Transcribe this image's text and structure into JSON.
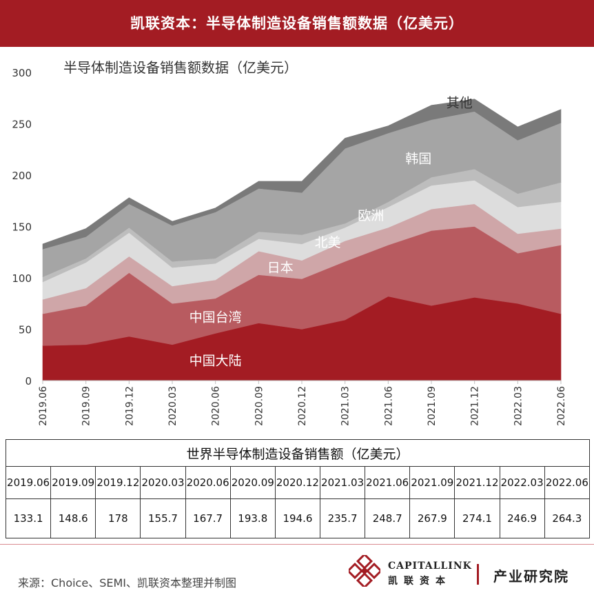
{
  "header": {
    "title": "凯联资本：半导体制造设备销售额数据（亿美元）"
  },
  "chart_data": {
    "type": "area",
    "stacked": true,
    "title": "半导体制造设备销售额数据（亿美元）",
    "categories": [
      "2019.06",
      "2019.09",
      "2019.12",
      "2020.03",
      "2020.06",
      "2020.09",
      "2020.12",
      "2021.03",
      "2021.06",
      "2021.09",
      "2021.12",
      "2022.03",
      "2022.06"
    ],
    "ylim": [
      0,
      300
    ],
    "yticks": [
      0,
      50,
      100,
      150,
      200,
      250,
      300
    ],
    "series": [
      {
        "name": "中国大陆",
        "color": "#a31c23",
        "values": [
          34,
          35,
          43,
          35,
          46,
          56,
          50,
          59,
          82,
          73,
          81,
          75,
          65
        ]
      },
      {
        "name": "中国台湾",
        "color": "#b85b60",
        "values": [
          31,
          38,
          62,
          40,
          34,
          47,
          49,
          57,
          50,
          73,
          69,
          49,
          67
        ]
      },
      {
        "name": "日本",
        "color": "#cfa6a8",
        "values": [
          14,
          17,
          16,
          17,
          18,
          23,
          18,
          20,
          17,
          21,
          22,
          19,
          16
        ]
      },
      {
        "name": "北美",
        "color": "#dddddd",
        "values": [
          17,
          25,
          23,
          18,
          16,
          12,
          16,
          13,
          20,
          23,
          23,
          26,
          26
        ]
      },
      {
        "name": "欧洲",
        "color": "#bdbdbd",
        "values": [
          5,
          4,
          5,
          6,
          5,
          7,
          9,
          4,
          5,
          8,
          11,
          13,
          19
        ]
      },
      {
        "name": "韩国",
        "color": "#a5a5a5",
        "values": [
          27,
          21,
          23,
          35,
          45,
          42,
          41,
          73,
          67,
          56,
          56,
          52,
          58
        ]
      },
      {
        "name": "其他",
        "color": "#7a7a7a",
        "values": [
          5,
          8,
          6,
          4,
          4,
          7,
          11,
          10,
          7,
          14,
          12,
          13,
          13
        ]
      }
    ],
    "series_labels": [
      "中国大陆",
      "中国台湾",
      "日本",
      "北美",
      "欧洲",
      "韩国",
      "其他"
    ],
    "legend": "inline"
  },
  "table": {
    "caption": "世界半导体制造设备销售额（亿美元）",
    "dates": [
      "2019.06",
      "2019.09",
      "2019.12",
      "2020.03",
      "2020.06",
      "2020.09",
      "2020.12",
      "2021.03",
      "2021.06",
      "2021.09",
      "2021.12",
      "2022.03",
      "2022.06"
    ],
    "values": [
      "133.1",
      "148.6",
      "178",
      "155.7",
      "167.7",
      "193.8",
      "194.6",
      "235.7",
      "248.7",
      "267.9",
      "274.1",
      "246.9",
      "264.3"
    ]
  },
  "footer": {
    "source": "来源：Choice、SEMI、凯联资本整理并制图",
    "brand_en": "CAPITALLINK",
    "brand_cn": "凯联资本",
    "institute": "产业研究院"
  }
}
